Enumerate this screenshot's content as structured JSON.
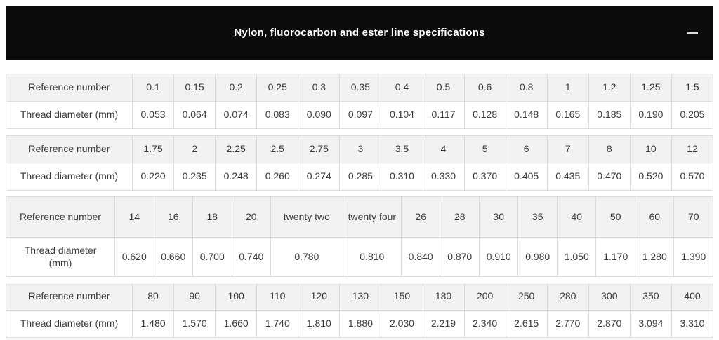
{
  "panel": {
    "title": "Nylon, fluorocarbon and ester line specifications",
    "collapse_icon": "minus"
  },
  "colors": {
    "panel_bg": "#0b0b0b",
    "panel_text": "#ffffff",
    "table_header_row_bg": "#f2f2f2",
    "table_row_bg": "#ffffff",
    "table_border": "#dcdcdc",
    "table_text": "#3a3a3a"
  },
  "tables": [
    {
      "reference_label": "Reference number",
      "diameter_label": "Thread diameter (mm)",
      "reference_numbers": [
        "0.1",
        "0.15",
        "0.2",
        "0.25",
        "0.3",
        "0.35",
        "0.4",
        "0.5",
        "0.6",
        "0.8",
        "1",
        "1.2",
        "1.25",
        "1.5"
      ],
      "thread_diameters_mm": [
        "0.053",
        "0.064",
        "0.074",
        "0.083",
        "0.090",
        "0.097",
        "0.104",
        "0.117",
        "0.128",
        "0.148",
        "0.165",
        "0.185",
        "0.190",
        "0.205"
      ]
    },
    {
      "reference_label": "Reference number",
      "diameter_label": "Thread diameter (mm)",
      "reference_numbers": [
        "1.75",
        "2",
        "2.25",
        "2.5",
        "2.75",
        "3",
        "3.5",
        "4",
        "5",
        "6",
        "7",
        "8",
        "10",
        "12"
      ],
      "thread_diameters_mm": [
        "0.220",
        "0.235",
        "0.248",
        "0.260",
        "0.274",
        "0.285",
        "0.310",
        "0.330",
        "0.370",
        "0.405",
        "0.435",
        "0.470",
        "0.520",
        "0.570"
      ]
    },
    {
      "reference_label": "Reference number",
      "diameter_label": "Thread diameter (mm)",
      "reference_numbers": [
        "14",
        "16",
        "18",
        "20",
        "twenty two",
        "twenty four",
        "26",
        "28",
        "30",
        "35",
        "40",
        "50",
        "60",
        "70"
      ],
      "thread_diameters_mm": [
        "0.620",
        "0.660",
        "0.700",
        "0.740",
        "0.780",
        "0.810",
        "0.840",
        "0.870",
        "0.910",
        "0.980",
        "1.050",
        "1.170",
        "1.280",
        "1.390"
      ]
    },
    {
      "reference_label": "Reference number",
      "diameter_label": "Thread diameter (mm)",
      "reference_numbers": [
        "80",
        "90",
        "100",
        "110",
        "120",
        "130",
        "150",
        "180",
        "200",
        "250",
        "280",
        "300",
        "350",
        "400"
      ],
      "thread_diameters_mm": [
        "1.480",
        "1.570",
        "1.660",
        "1.740",
        "1.810",
        "1.880",
        "2.030",
        "2.219",
        "2.340",
        "2.615",
        "2.770",
        "2.870",
        "3.094",
        "3.310"
      ]
    }
  ]
}
